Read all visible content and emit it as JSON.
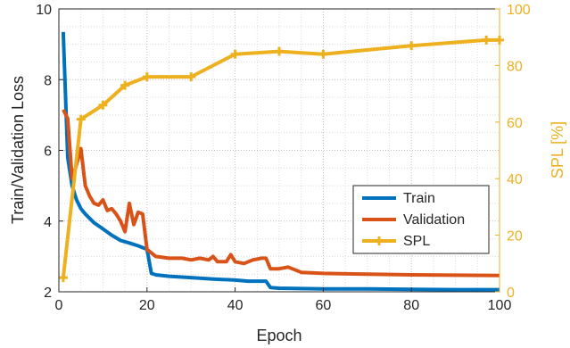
{
  "chart_data": {
    "type": "line",
    "title": "",
    "xlabel": "Epoch",
    "ylabel_left": "Train/Validation Loss",
    "ylabel_right": "SPL [%]",
    "xlim": [
      0,
      100
    ],
    "ylim_left": [
      2,
      10
    ],
    "ylim_right": [
      0,
      100
    ],
    "x_ticks": [
      0,
      20,
      40,
      60,
      80,
      100
    ],
    "y_ticks_left": [
      2,
      4,
      6,
      8,
      10
    ],
    "y_ticks_right": [
      0,
      20,
      40,
      60,
      80,
      100
    ],
    "grid": "dotted",
    "legend_position": "lower-right",
    "colors": {
      "train": "#0072BD",
      "validation": "#D95319",
      "spl": "#EDB120"
    },
    "series": [
      {
        "name": "Train",
        "axis": "left",
        "x": [
          1,
          2,
          3,
          4,
          5,
          6,
          8,
          10,
          12,
          14,
          16,
          18,
          20,
          21,
          22,
          25,
          30,
          35,
          40,
          43,
          45,
          47,
          48,
          50,
          55,
          60,
          70,
          80,
          90,
          100
        ],
        "y": [
          9.35,
          5.8,
          5.0,
          4.6,
          4.35,
          4.2,
          3.95,
          3.78,
          3.6,
          3.45,
          3.38,
          3.3,
          3.2,
          2.52,
          2.48,
          2.44,
          2.4,
          2.36,
          2.33,
          2.3,
          2.3,
          2.3,
          2.12,
          2.1,
          2.09,
          2.08,
          2.08,
          2.07,
          2.06,
          2.06
        ]
      },
      {
        "name": "Validation",
        "axis": "left",
        "x": [
          1,
          2,
          3,
          4,
          5,
          6,
          7,
          8,
          9,
          10,
          11,
          12,
          13,
          14,
          15,
          16,
          17,
          18,
          19,
          20,
          21,
          22,
          25,
          28,
          30,
          32,
          34,
          35,
          36,
          38,
          39,
          40,
          42,
          44,
          46,
          47,
          48,
          50,
          52,
          55,
          60,
          70,
          80,
          90,
          100
        ],
        "y": [
          7.15,
          6.9,
          5.2,
          5.6,
          6.05,
          5.0,
          4.7,
          4.5,
          4.45,
          4.6,
          4.3,
          4.35,
          4.2,
          4.0,
          3.7,
          4.5,
          3.9,
          4.25,
          4.2,
          3.2,
          3.1,
          3.0,
          2.95,
          2.95,
          2.9,
          2.95,
          2.9,
          3.0,
          2.85,
          2.85,
          3.05,
          2.85,
          2.8,
          2.9,
          2.95,
          2.95,
          2.65,
          2.65,
          2.7,
          2.55,
          2.52,
          2.5,
          2.48,
          2.47,
          2.46
        ]
      },
      {
        "name": "SPL",
        "axis": "right",
        "markers": "plus",
        "x": [
          1,
          5,
          10,
          15,
          20,
          30,
          40,
          50,
          60,
          80,
          97,
          100
        ],
        "y": [
          5,
          61,
          66,
          73,
          76,
          76,
          84,
          85,
          84,
          87,
          89,
          89
        ]
      }
    ]
  }
}
